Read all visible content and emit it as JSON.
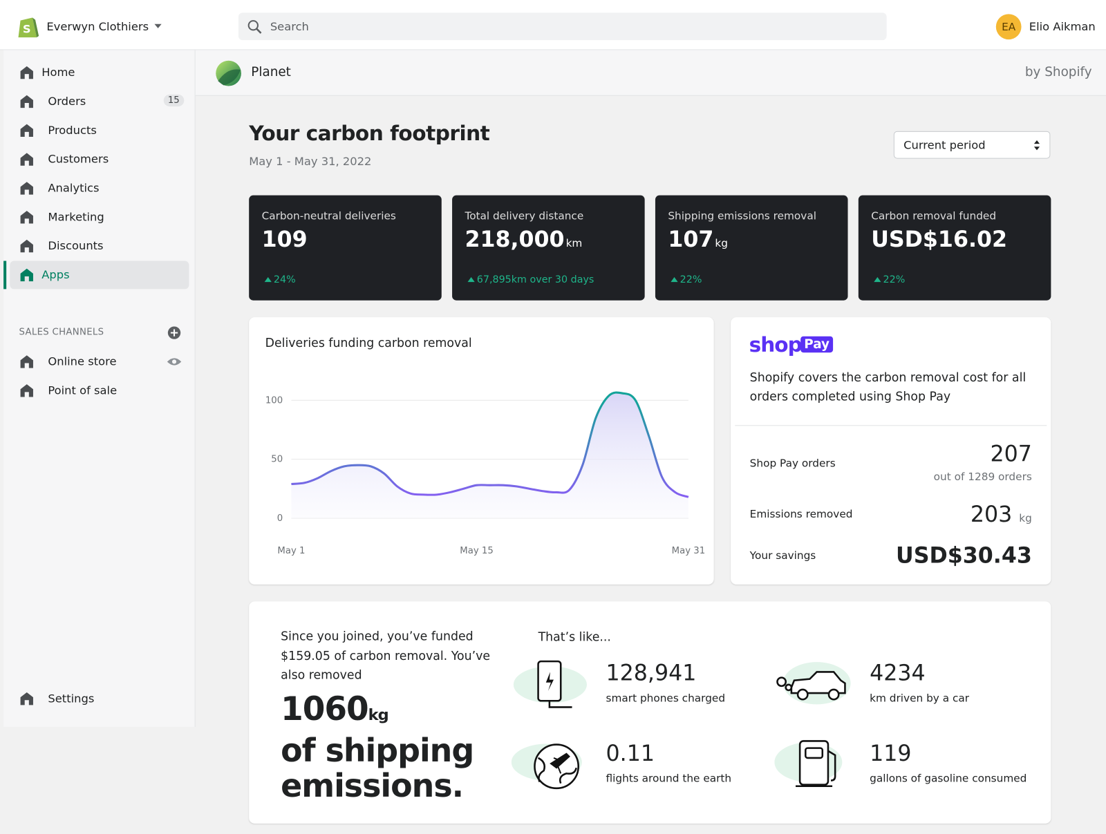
{
  "topbar": {
    "store": "Everwyn Clothiers",
    "search": "Search",
    "avatar": "EA",
    "user": "Elio Aikman"
  },
  "sidebar": {
    "nav": [
      {
        "label": "Home"
      },
      {
        "label": "Orders",
        "badge": "15"
      },
      {
        "label": "Products"
      },
      {
        "label": "Customers"
      },
      {
        "label": "Analytics"
      },
      {
        "label": "Marketing"
      },
      {
        "label": "Discounts"
      },
      {
        "label": "Apps"
      }
    ],
    "sales_channels": "SALES CHANNELS",
    "channels": [
      "Online store",
      "Point of sale"
    ],
    "settings": "Settings"
  },
  "app_header": {
    "name": "Planet",
    "by": "by Shopify"
  },
  "page": {
    "title": "Your carbon footprint",
    "date_range": "May 1 - May 31, 2022",
    "period": "Current period"
  },
  "metrics": [
    {
      "label": "Carbon-neutral deliveries",
      "value": "109",
      "change": "24%"
    },
    {
      "label": "Total delivery distance",
      "value": "218,000",
      "unit": "km",
      "change": "67,895km over 30 days"
    },
    {
      "label": "Shipping emissions removal",
      "value": "107",
      "unit": "kg",
      "change": "22%"
    },
    {
      "label": "Carbon removal funded",
      "value": "USD$16.02",
      "change": "22%"
    }
  ],
  "chart_data": {
    "type": "line",
    "title": "Deliveries funding carbon removal",
    "categories": [
      "May 1",
      null,
      null,
      null,
      null,
      null,
      null,
      null,
      null,
      null,
      null,
      null,
      null,
      null,
      "May 15",
      null,
      null,
      null,
      null,
      null,
      null,
      null,
      null,
      null,
      null,
      null,
      null,
      null,
      null,
      null,
      "May 31"
    ],
    "values": [
      29,
      30,
      34,
      40,
      44,
      45,
      44,
      38,
      27,
      21,
      20,
      20,
      22,
      25,
      28,
      28,
      28,
      27,
      25,
      23,
      22,
      24,
      45,
      85,
      104,
      106,
      100,
      70,
      35,
      22,
      18
    ],
    "ylim": [
      0,
      110
    ],
    "yticks": [
      0,
      50,
      100
    ],
    "grid": true,
    "color": "#7c5cf0"
  },
  "shop_pay": {
    "logo": "shop",
    "logo_badge": "Pay",
    "text": "Shopify covers the carbon removal cost for all orders completed using Shop Pay",
    "rows": [
      {
        "label": "Shop Pay orders",
        "value": "207",
        "note": "out of 1289 orders"
      },
      {
        "label": "Emissions removed",
        "value": "203",
        "unit": "kg"
      },
      {
        "label": "Your savings",
        "value": "USD$30.43"
      }
    ]
  },
  "summary": {
    "intro": "Since you joined, you’ve funded $159.05 of carbon removal. You’ve also removed",
    "amount": "1060",
    "unit": "kg",
    "tail": "of shipping emissions.",
    "like": "That’s like...",
    "items": [
      {
        "value": "128,941",
        "label": "smart phones charged"
      },
      {
        "value": "4234",
        "label": "km driven by a car"
      },
      {
        "value": "0.11",
        "label": "flights around the earth"
      },
      {
        "value": "119",
        "label": "gallons of gasoline consumed"
      }
    ]
  }
}
